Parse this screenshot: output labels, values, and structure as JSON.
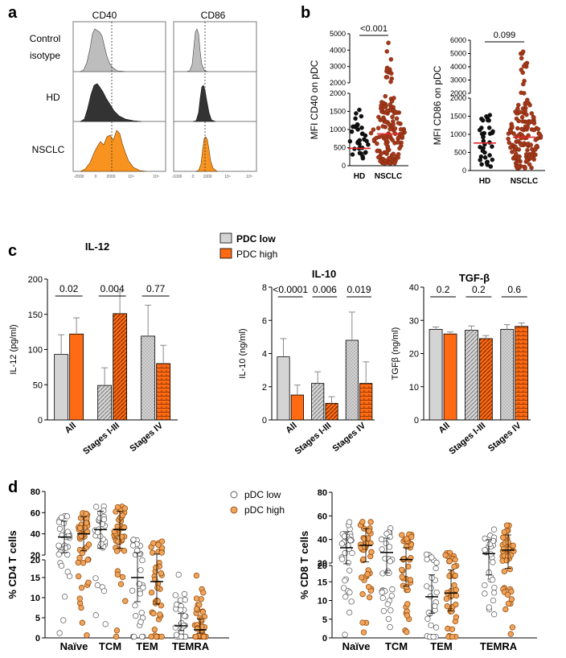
{
  "colors": {
    "hd": "#bdbdbd",
    "dark": "#333333",
    "orange": "#f47920",
    "red": "#e8262c",
    "low_fill": "#d4d4d4",
    "high_fill": "#ff6a13",
    "dotO": "#f0a35a"
  },
  "panel_a": {
    "label": "a",
    "col_titles": [
      "CD40",
      "CD86"
    ],
    "row_labels": [
      [
        "Control",
        "isotype"
      ],
      [
        "HD"
      ],
      [
        "NSCLC"
      ]
    ],
    "xticks_cd40": [
      "-2000",
      "0",
      "2000",
      "10⁴",
      "10⁵"
    ],
    "xticks_cd86": [
      "-1000",
      "0",
      "1000",
      "10⁴",
      "10⁵"
    ]
  },
  "panel_b": {
    "label": "b",
    "charts": [
      {
        "type": "scatter",
        "ylabel": "MFI CD40 on pDC",
        "categories": [
          "HD",
          "NSCLC"
        ],
        "pvalue": "<0.001",
        "yticks_low": [
          "0",
          "500",
          "1000",
          "1500",
          "2000"
        ],
        "yticks_high": [
          "2000",
          "3000",
          "4000",
          "5000"
        ],
        "medians": [
          480,
          880
        ]
      },
      {
        "type": "scatter",
        "ylabel": "MFI CD86 on pDC",
        "categories": [
          "HD",
          "NSCLC"
        ],
        "pvalue": "0.099",
        "yticks_low": [
          "0",
          "500",
          "1000",
          "1500",
          "2000"
        ],
        "yticks_high": [
          "2000",
          "3000",
          "4000",
          "5000",
          "6000"
        ],
        "medians": [
          760,
          920
        ]
      }
    ]
  },
  "panel_c": {
    "label": "c",
    "legend": [
      "PDC low",
      "PDC high"
    ],
    "categories": [
      "All",
      "Stages I-III",
      "Stages IV"
    ],
    "charts": [
      {
        "type": "bar",
        "title": "IL-12",
        "ylabel": "IL-12 (pg/ml)",
        "ylim": [
          0,
          200
        ],
        "yticks": [
          "0",
          "50",
          "100",
          "150",
          "200"
        ],
        "pvalues": [
          "0.02",
          "0.004",
          "0.77"
        ],
        "series": [
          {
            "name": "PDC low",
            "values": [
              93,
              49,
              119
            ],
            "err": [
              121,
              74,
              163
            ]
          },
          {
            "name": "PDC high",
            "values": [
              122,
              151,
              80
            ],
            "err": [
              145,
              182,
              106
            ]
          }
        ]
      },
      {
        "type": "bar",
        "title": "IL-10",
        "ylabel": "IL-10 (ng/ml)",
        "ylim": [
          0,
          8
        ],
        "yticks": [
          "0",
          "2",
          "4",
          "6",
          "8"
        ],
        "pvalues": [
          "<0.0001",
          "0.006",
          "0.019"
        ],
        "series": [
          {
            "name": "PDC low",
            "values": [
              3.8,
              2.2,
              4.8
            ],
            "err": [
              4.9,
              2.9,
              6.5
            ]
          },
          {
            "name": "PDC high",
            "values": [
              1.5,
              1.0,
              2.2
            ],
            "err": [
              2.1,
              1.4,
              3.5
            ]
          }
        ]
      },
      {
        "type": "bar",
        "title": "TGF-β",
        "ylabel": "TGFβ (ng/ml)",
        "ylim": [
          0,
          40
        ],
        "yticks": [
          "0",
          "10",
          "20",
          "30",
          "40"
        ],
        "pvalues": [
          "0.2",
          "0.2",
          "0.6"
        ],
        "series": [
          {
            "name": "PDC low",
            "values": [
              27.3,
              27.0,
              27.3
            ],
            "err": [
              28.0,
              28.3,
              28.7
            ]
          },
          {
            "name": "PDC high",
            "values": [
              25.9,
              24.5,
              28.2
            ],
            "err": [
              26.5,
              25.4,
              29.2
            ]
          }
        ]
      }
    ]
  },
  "panel_d": {
    "label": "d",
    "legend": [
      "pDC low",
      "pDC high"
    ],
    "categories": [
      "Naïve",
      "TCM",
      "TEM",
      "TEMRA"
    ],
    "charts": [
      {
        "type": "scatter",
        "ylabel": "% CD4 T cells",
        "yticks_low": [
          "0",
          "5",
          "10",
          "15",
          "20"
        ],
        "yticks_high": [
          "20",
          "40",
          "60",
          "80"
        ],
        "medians_low": [
          37,
          44,
          15,
          3
        ],
        "medians_high": [
          40,
          44,
          14,
          2
        ]
      },
      {
        "type": "scatter",
        "ylabel": "% CD8 T cells",
        "yticks_low": [
          "0",
          "5",
          "10",
          "15",
          "20"
        ],
        "yticks_high": [
          "20",
          "40",
          "60",
          "80"
        ],
        "medians_low": [
          33,
          29,
          11,
          28
        ],
        "medians_high": [
          35,
          23,
          12,
          31
        ]
      }
    ]
  }
}
